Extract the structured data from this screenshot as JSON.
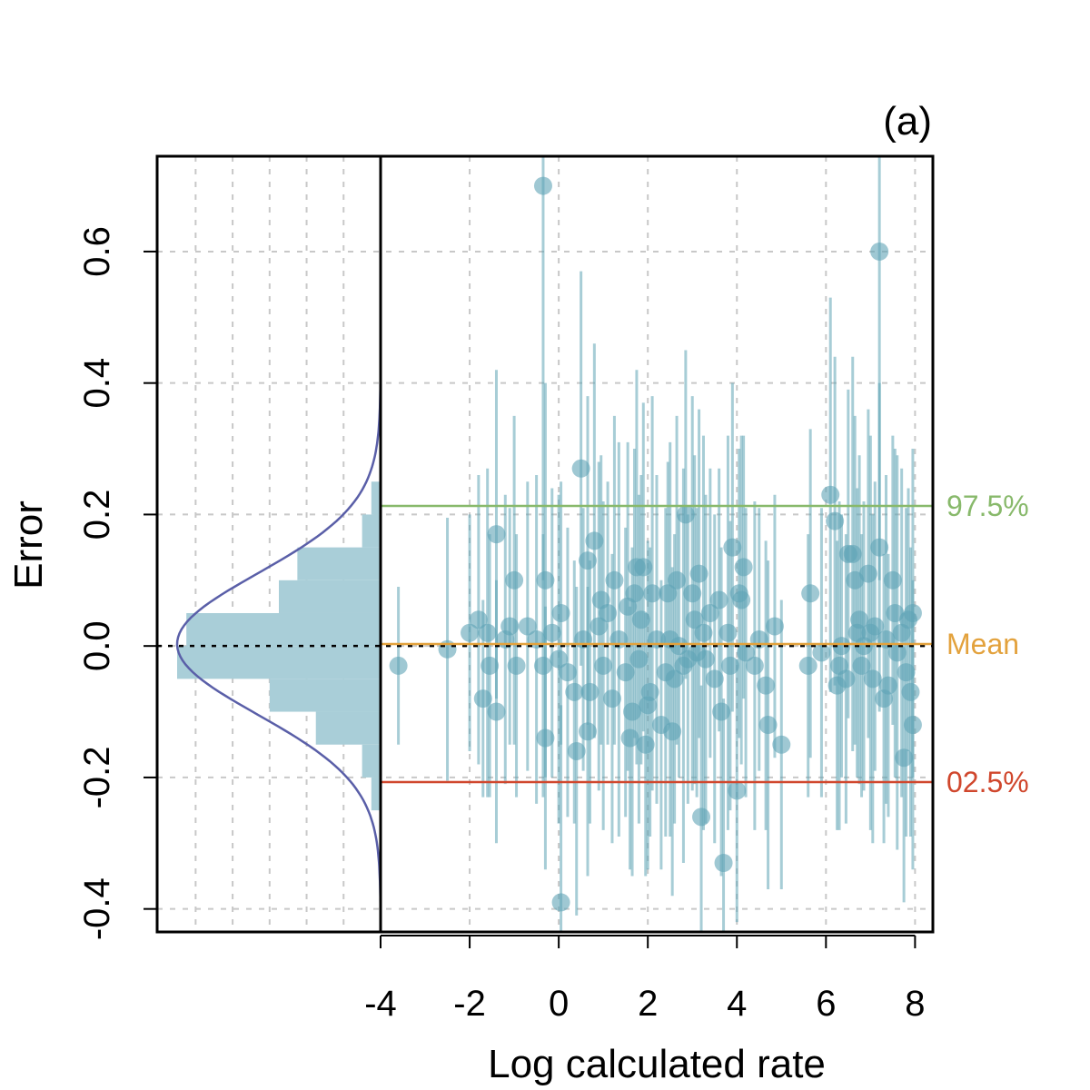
{
  "chart_data": {
    "type": "scatter",
    "panel_label": "(a)",
    "xlabel": "Log calculated rate",
    "ylabel": "Error",
    "xlim": [
      -4.0,
      8.4
    ],
    "ylim": [
      -0.435,
      0.745
    ],
    "x_ticks": [
      -4,
      -2,
      0,
      2,
      4,
      6,
      8
    ],
    "x_tick_labels": [
      "-4",
      "-2",
      "0",
      "2",
      "4",
      "6",
      "8"
    ],
    "y_ticks": [
      -0.4,
      -0.2,
      0.0,
      0.2,
      0.4,
      0.6
    ],
    "y_tick_labels": [
      "-0.4",
      "-0.2",
      "0.0",
      "0.2",
      "0.4",
      "0.6"
    ],
    "grid": true,
    "colors": {
      "points": "#5fa4b5",
      "histogram": "#a9ced8",
      "density": "#5a5fa8",
      "upper": "#88b96b",
      "mean": "#e3a23d",
      "lower": "#d0472d",
      "grid": "#c8c8c8"
    },
    "reference_lines": [
      {
        "name": "upper",
        "label": "97.5%",
        "y": 0.213
      },
      {
        "name": "mean",
        "label": "Mean",
        "y": 0.003
      },
      {
        "name": "lower",
        "label": "02.5%",
        "y": -0.207
      }
    ],
    "marginal": {
      "histogram_bins": [
        {
          "y0": -0.25,
          "y1": -0.2,
          "density": 0.5
        },
        {
          "y0": -0.2,
          "y1": -0.15,
          "density": 1.0
        },
        {
          "y0": -0.15,
          "y1": -0.1,
          "density": 3.5
        },
        {
          "y0": -0.1,
          "y1": -0.05,
          "density": 6.0
        },
        {
          "y0": -0.05,
          "y1": 0.0,
          "density": 11.0
        },
        {
          "y0": 0.0,
          "y1": 0.05,
          "density": 10.5
        },
        {
          "y0": 0.05,
          "y1": 0.1,
          "density": 5.5
        },
        {
          "y0": 0.1,
          "y1": 0.15,
          "density": 4.5
        },
        {
          "y0": 0.15,
          "y1": 0.2,
          "density": 1.0
        },
        {
          "y0": 0.2,
          "y1": 0.25,
          "density": 0.5
        }
      ],
      "density_mean": 0.003,
      "density_sd": 0.107,
      "density_peak": 11.0
    },
    "points": [
      {
        "x": -3.6,
        "y": -0.03,
        "err": 0.12
      },
      {
        "x": -2.5,
        "y": -0.005,
        "err": 0.2
      },
      {
        "x": -2.0,
        "y": 0.02,
        "err": 0.18
      },
      {
        "x": -1.8,
        "y": 0.04,
        "err": 0.22
      },
      {
        "x": -1.7,
        "y": -0.08,
        "err": 0.15
      },
      {
        "x": -1.6,
        "y": 0.02,
        "err": 0.25
      },
      {
        "x": -1.55,
        "y": -0.03,
        "err": 0.2
      },
      {
        "x": -1.4,
        "y": 0.17,
        "err": 0.25
      },
      {
        "x": -1.4,
        "y": -0.1,
        "err": 0.2
      },
      {
        "x": -1.2,
        "y": 0.01,
        "err": 0.22
      },
      {
        "x": -1.1,
        "y": 0.03,
        "err": 0.18
      },
      {
        "x": -1.0,
        "y": 0.1,
        "err": 0.25
      },
      {
        "x": -0.95,
        "y": -0.03,
        "err": 0.2
      },
      {
        "x": -0.7,
        "y": 0.03,
        "err": 0.22
      },
      {
        "x": -0.5,
        "y": 0.01,
        "err": 0.25
      },
      {
        "x": -0.35,
        "y": -0.03,
        "err": 0.2
      },
      {
        "x": -0.3,
        "y": 0.1,
        "err": 0.3
      },
      {
        "x": -0.3,
        "y": -0.14,
        "err": 0.2
      },
      {
        "x": -0.35,
        "y": 0.7,
        "err": 0.6
      },
      {
        "x": -0.15,
        "y": 0.02,
        "err": 0.22
      },
      {
        "x": 0.0,
        "y": -0.02,
        "err": 0.25
      },
      {
        "x": 0.05,
        "y": 0.05,
        "err": 0.2
      },
      {
        "x": 0.05,
        "y": -0.39,
        "err": 0.3
      },
      {
        "x": 0.2,
        "y": -0.04,
        "err": 0.22
      },
      {
        "x": 0.35,
        "y": -0.07,
        "err": 0.2
      },
      {
        "x": 0.4,
        "y": -0.16,
        "err": 0.25
      },
      {
        "x": 0.5,
        "y": 0.27,
        "err": 0.3
      },
      {
        "x": 0.55,
        "y": 0.01,
        "err": 0.2
      },
      {
        "x": 0.65,
        "y": 0.13,
        "err": 0.25
      },
      {
        "x": 0.65,
        "y": -0.13,
        "err": 0.22
      },
      {
        "x": 0.7,
        "y": -0.07,
        "err": 0.2
      },
      {
        "x": 0.8,
        "y": 0.16,
        "err": 0.3
      },
      {
        "x": 0.9,
        "y": 0.03,
        "err": 0.25
      },
      {
        "x": 0.95,
        "y": 0.07,
        "err": 0.22
      },
      {
        "x": 1.0,
        "y": -0.03,
        "err": 0.25
      },
      {
        "x": 1.1,
        "y": 0.05,
        "err": 0.2
      },
      {
        "x": 1.2,
        "y": -0.08,
        "err": 0.22
      },
      {
        "x": 1.25,
        "y": 0.1,
        "err": 0.25
      },
      {
        "x": 1.35,
        "y": 0.01,
        "err": 0.3
      },
      {
        "x": 1.5,
        "y": -0.04,
        "err": 0.22
      },
      {
        "x": 1.55,
        "y": 0.06,
        "err": 0.25
      },
      {
        "x": 1.6,
        "y": -0.14,
        "err": 0.2
      },
      {
        "x": 1.65,
        "y": -0.1,
        "err": 0.25
      },
      {
        "x": 1.7,
        "y": 0.08,
        "err": 0.22
      },
      {
        "x": 1.75,
        "y": 0.12,
        "err": 0.3
      },
      {
        "x": 1.8,
        "y": -0.02,
        "err": 0.25
      },
      {
        "x": 1.85,
        "y": 0.04,
        "err": 0.22
      },
      {
        "x": 1.9,
        "y": 0.12,
        "err": 0.25
      },
      {
        "x": 1.95,
        "y": -0.15,
        "err": 0.2
      },
      {
        "x": 2.0,
        "y": -0.09,
        "err": 0.25
      },
      {
        "x": 2.05,
        "y": -0.07,
        "err": 0.22
      },
      {
        "x": 2.1,
        "y": 0.08,
        "err": 0.3
      },
      {
        "x": 2.2,
        "y": 0.01,
        "err": 0.25
      },
      {
        "x": 2.3,
        "y": -0.12,
        "err": 0.22
      },
      {
        "x": 2.4,
        "y": -0.04,
        "err": 0.25
      },
      {
        "x": 2.45,
        "y": 0.08,
        "err": 0.2
      },
      {
        "x": 2.5,
        "y": 0.01,
        "err": 0.3
      },
      {
        "x": 2.55,
        "y": -0.13,
        "err": 0.25
      },
      {
        "x": 2.6,
        "y": -0.05,
        "err": 0.22
      },
      {
        "x": 2.65,
        "y": 0.1,
        "err": 0.25
      },
      {
        "x": 2.7,
        "y": 0.0,
        "err": 0.2
      },
      {
        "x": 2.8,
        "y": -0.03,
        "err": 0.3
      },
      {
        "x": 2.85,
        "y": 0.2,
        "err": 0.25
      },
      {
        "x": 2.9,
        "y": -0.02,
        "err": 0.22
      },
      {
        "x": 3.0,
        "y": 0.08,
        "err": 0.3
      },
      {
        "x": 3.05,
        "y": 0.04,
        "err": 0.25
      },
      {
        "x": 3.1,
        "y": -0.01,
        "err": 0.22
      },
      {
        "x": 3.15,
        "y": 0.11,
        "err": 0.25
      },
      {
        "x": 3.2,
        "y": -0.26,
        "err": 0.2
      },
      {
        "x": 3.25,
        "y": 0.02,
        "err": 0.3
      },
      {
        "x": 3.3,
        "y": -0.02,
        "err": 0.25
      },
      {
        "x": 3.4,
        "y": 0.05,
        "err": 0.22
      },
      {
        "x": 3.5,
        "y": -0.05,
        "err": 0.25
      },
      {
        "x": 3.6,
        "y": 0.07,
        "err": 0.2
      },
      {
        "x": 3.65,
        "y": -0.1,
        "err": 0.25
      },
      {
        "x": 3.7,
        "y": -0.33,
        "err": 0.25
      },
      {
        "x": 3.8,
        "y": 0.02,
        "err": 0.3
      },
      {
        "x": 3.85,
        "y": -0.03,
        "err": 0.22
      },
      {
        "x": 3.9,
        "y": 0.15,
        "err": 0.25
      },
      {
        "x": 4.0,
        "y": -0.22,
        "err": 0.2
      },
      {
        "x": 4.05,
        "y": 0.08,
        "err": 0.22
      },
      {
        "x": 4.1,
        "y": 0.07,
        "err": 0.25
      },
      {
        "x": 4.15,
        "y": 0.12,
        "err": 0.2
      },
      {
        "x": 4.2,
        "y": -0.01,
        "err": 0.22
      },
      {
        "x": 4.4,
        "y": -0.03,
        "err": 0.25
      },
      {
        "x": 4.5,
        "y": 0.01,
        "err": 0.2
      },
      {
        "x": 4.65,
        "y": -0.06,
        "err": 0.22
      },
      {
        "x": 4.7,
        "y": -0.12,
        "err": 0.25
      },
      {
        "x": 4.85,
        "y": 0.03,
        "err": 0.2
      },
      {
        "x": 5.0,
        "y": -0.15,
        "err": 0.22
      },
      {
        "x": 5.6,
        "y": -0.03,
        "err": 0.2
      },
      {
        "x": 5.65,
        "y": 0.08,
        "err": 0.25
      },
      {
        "x": 5.9,
        "y": -0.01,
        "err": 0.22
      },
      {
        "x": 6.1,
        "y": 0.23,
        "err": 0.3
      },
      {
        "x": 6.2,
        "y": 0.19,
        "err": 0.25
      },
      {
        "x": 6.25,
        "y": -0.06,
        "err": 0.22
      },
      {
        "x": 6.3,
        "y": -0.03,
        "err": 0.25
      },
      {
        "x": 6.35,
        "y": 0.0,
        "err": 0.2
      },
      {
        "x": 6.45,
        "y": -0.05,
        "err": 0.22
      },
      {
        "x": 6.5,
        "y": 0.14,
        "err": 0.25
      },
      {
        "x": 6.6,
        "y": 0.14,
        "err": 0.3
      },
      {
        "x": 6.65,
        "y": 0.1,
        "err": 0.25
      },
      {
        "x": 6.7,
        "y": 0.02,
        "err": 0.22
      },
      {
        "x": 6.75,
        "y": 0.04,
        "err": 0.25
      },
      {
        "x": 6.8,
        "y": -0.03,
        "err": 0.2
      },
      {
        "x": 6.85,
        "y": 0.0,
        "err": 0.22
      },
      {
        "x": 6.95,
        "y": 0.11,
        "err": 0.25
      },
      {
        "x": 7.0,
        "y": 0.02,
        "err": 0.3
      },
      {
        "x": 7.05,
        "y": -0.05,
        "err": 0.25
      },
      {
        "x": 7.1,
        "y": 0.03,
        "err": 0.22
      },
      {
        "x": 7.2,
        "y": 0.15,
        "err": 0.25
      },
      {
        "x": 7.2,
        "y": 0.6,
        "err": 0.5
      },
      {
        "x": 7.3,
        "y": -0.08,
        "err": 0.22
      },
      {
        "x": 7.35,
        "y": 0.01,
        "err": 0.25
      },
      {
        "x": 7.4,
        "y": -0.06,
        "err": 0.2
      },
      {
        "x": 7.5,
        "y": 0.1,
        "err": 0.22
      },
      {
        "x": 7.55,
        "y": 0.05,
        "err": 0.25
      },
      {
        "x": 7.6,
        "y": -0.01,
        "err": 0.3
      },
      {
        "x": 7.7,
        "y": 0.02,
        "err": 0.25
      },
      {
        "x": 7.75,
        "y": -0.17,
        "err": 0.22
      },
      {
        "x": 7.8,
        "y": -0.04,
        "err": 0.25
      },
      {
        "x": 7.85,
        "y": 0.04,
        "err": 0.2
      },
      {
        "x": 7.9,
        "y": -0.07,
        "err": 0.22
      },
      {
        "x": 7.95,
        "y": 0.05,
        "err": 0.25
      },
      {
        "x": 7.95,
        "y": -0.12,
        "err": 0.22
      }
    ]
  }
}
